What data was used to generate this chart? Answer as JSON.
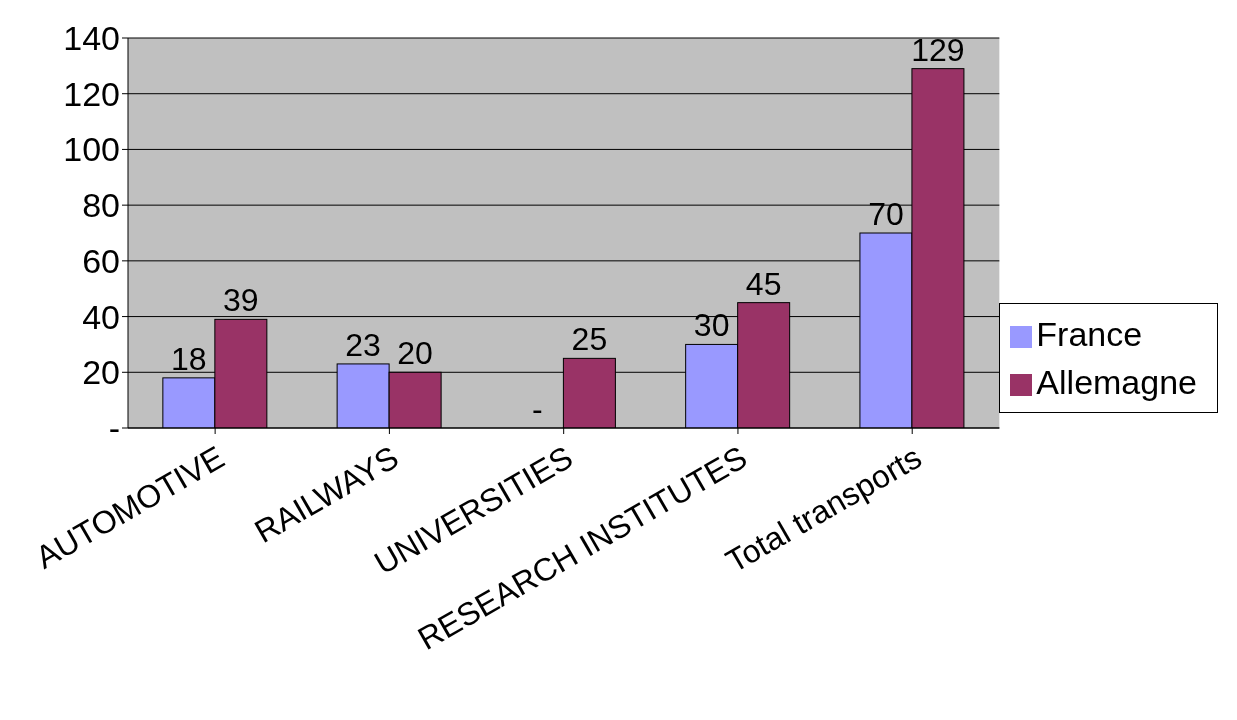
{
  "chart_data": {
    "type": "bar",
    "categories": [
      "AUTOMOTIVE",
      "RAILWAYS",
      "UNIVERSITIES",
      "RESEARCH INSTITUTES",
      "Total transports"
    ],
    "series": [
      {
        "name": "France",
        "color": "#9999ff",
        "values": [
          18,
          23,
          0,
          30,
          70
        ],
        "value_labels": [
          "18",
          "23",
          "-",
          "30",
          "70"
        ]
      },
      {
        "name": "Allemagne",
        "color": "#993366",
        "values": [
          39,
          20,
          25,
          45,
          129
        ],
        "value_labels": [
          "39",
          "20",
          "25",
          "45",
          "129"
        ]
      }
    ],
    "ylim": [
      0,
      140
    ],
    "yticks": [
      {
        "value": 0,
        "label": "-"
      },
      20,
      40,
      60,
      80,
      100,
      120,
      140
    ],
    "grid": "y",
    "legend": "right"
  }
}
